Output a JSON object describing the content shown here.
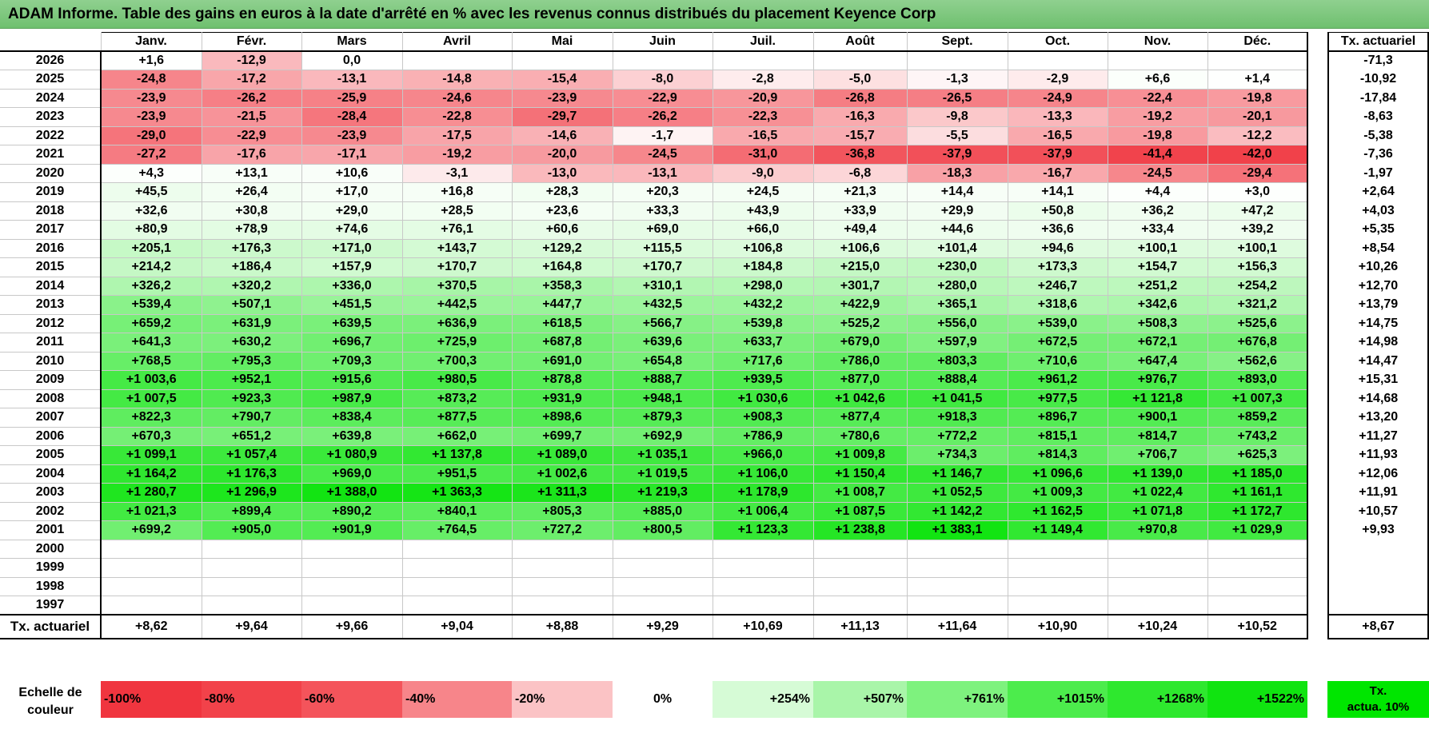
{
  "title": "ADAM Informe. Table des gains en euros à la date d'arrêté en % avec les revenus connus distribués du placement Keyence Corp",
  "months": [
    "Janv.",
    "Févr.",
    "Mars",
    "Avril",
    "Mai",
    "Juin",
    "Juil.",
    "Août",
    "Sept.",
    "Oct.",
    "Nov.",
    "Déc."
  ],
  "side_header": "Tx. actuariel",
  "rows": [
    {
      "year": "2026",
      "values": [
        "+1,6",
        "-12,9",
        "0,0",
        "",
        "",
        "",
        "",
        "",
        "",
        "",
        "",
        ""
      ],
      "tx": "-71,3"
    },
    {
      "year": "2025",
      "values": [
        "-24,8",
        "-17,2",
        "-13,1",
        "-14,8",
        "-15,4",
        "-8,0",
        "-2,8",
        "-5,0",
        "-1,3",
        "-2,9",
        "+6,6",
        "+1,4"
      ],
      "tx": "-10,92"
    },
    {
      "year": "2024",
      "values": [
        "-23,9",
        "-26,2",
        "-25,9",
        "-24,6",
        "-23,9",
        "-22,9",
        "-20,9",
        "-26,8",
        "-26,5",
        "-24,9",
        "-22,4",
        "-19,8"
      ],
      "tx": "-17,84"
    },
    {
      "year": "2023",
      "values": [
        "-23,9",
        "-21,5",
        "-28,4",
        "-22,8",
        "-29,7",
        "-26,2",
        "-22,3",
        "-16,3",
        "-9,8",
        "-13,3",
        "-19,2",
        "-20,1"
      ],
      "tx": "-8,63"
    },
    {
      "year": "2022",
      "values": [
        "-29,0",
        "-22,9",
        "-23,9",
        "-17,5",
        "-14,6",
        "-1,7",
        "-16,5",
        "-15,7",
        "-5,5",
        "-16,5",
        "-19,8",
        "-12,2"
      ],
      "tx": "-5,38"
    },
    {
      "year": "2021",
      "values": [
        "-27,2",
        "-17,6",
        "-17,1",
        "-19,2",
        "-20,0",
        "-24,5",
        "-31,0",
        "-36,8",
        "-37,9",
        "-37,9",
        "-41,4",
        "-42,0"
      ],
      "tx": "-7,36"
    },
    {
      "year": "2020",
      "values": [
        "+4,3",
        "+13,1",
        "+10,6",
        "-3,1",
        "-13,0",
        "-13,1",
        "-9,0",
        "-6,8",
        "-18,3",
        "-16,7",
        "-24,5",
        "-29,4"
      ],
      "tx": "-1,97"
    },
    {
      "year": "2019",
      "values": [
        "+45,5",
        "+26,4",
        "+17,0",
        "+16,8",
        "+28,3",
        "+20,3",
        "+24,5",
        "+21,3",
        "+14,4",
        "+14,1",
        "+4,4",
        "+3,0"
      ],
      "tx": "+2,64"
    },
    {
      "year": "2018",
      "values": [
        "+32,6",
        "+30,8",
        "+29,0",
        "+28,5",
        "+23,6",
        "+33,3",
        "+43,9",
        "+33,9",
        "+29,9",
        "+50,8",
        "+36,2",
        "+47,2"
      ],
      "tx": "+4,03"
    },
    {
      "year": "2017",
      "values": [
        "+80,9",
        "+78,9",
        "+74,6",
        "+76,1",
        "+60,6",
        "+69,0",
        "+66,0",
        "+49,4",
        "+44,6",
        "+36,6",
        "+33,4",
        "+39,2"
      ],
      "tx": "+5,35"
    },
    {
      "year": "2016",
      "values": [
        "+205,1",
        "+176,3",
        "+171,0",
        "+143,7",
        "+129,2",
        "+115,5",
        "+106,8",
        "+106,6",
        "+101,4",
        "+94,6",
        "+100,1",
        "+100,1"
      ],
      "tx": "+8,54"
    },
    {
      "year": "2015",
      "values": [
        "+214,2",
        "+186,4",
        "+157,9",
        "+170,7",
        "+164,8",
        "+170,7",
        "+184,8",
        "+215,0",
        "+230,0",
        "+173,3",
        "+154,7",
        "+156,3"
      ],
      "tx": "+10,26"
    },
    {
      "year": "2014",
      "values": [
        "+326,2",
        "+320,2",
        "+336,0",
        "+370,5",
        "+358,3",
        "+310,1",
        "+298,0",
        "+301,7",
        "+280,0",
        "+246,7",
        "+251,2",
        "+254,2"
      ],
      "tx": "+12,70"
    },
    {
      "year": "2013",
      "values": [
        "+539,4",
        "+507,1",
        "+451,5",
        "+442,5",
        "+447,7",
        "+432,5",
        "+432,2",
        "+422,9",
        "+365,1",
        "+318,6",
        "+342,6",
        "+321,2"
      ],
      "tx": "+13,79"
    },
    {
      "year": "2012",
      "values": [
        "+659,2",
        "+631,9",
        "+639,5",
        "+636,9",
        "+618,5",
        "+566,7",
        "+539,8",
        "+525,2",
        "+556,0",
        "+539,0",
        "+508,3",
        "+525,6"
      ],
      "tx": "+14,75"
    },
    {
      "year": "2011",
      "values": [
        "+641,3",
        "+630,2",
        "+696,7",
        "+725,9",
        "+687,8",
        "+639,6",
        "+633,7",
        "+679,0",
        "+597,9",
        "+672,5",
        "+672,1",
        "+676,8"
      ],
      "tx": "+14,98"
    },
    {
      "year": "2010",
      "values": [
        "+768,5",
        "+795,3",
        "+709,3",
        "+700,3",
        "+691,0",
        "+654,8",
        "+717,6",
        "+786,0",
        "+803,3",
        "+710,6",
        "+647,4",
        "+562,6"
      ],
      "tx": "+14,47"
    },
    {
      "year": "2009",
      "values": [
        "+1 003,6",
        "+952,1",
        "+915,6",
        "+980,5",
        "+878,8",
        "+888,7",
        "+939,5",
        "+877,0",
        "+888,4",
        "+961,2",
        "+976,7",
        "+893,0"
      ],
      "tx": "+15,31"
    },
    {
      "year": "2008",
      "values": [
        "+1 007,5",
        "+923,3",
        "+987,9",
        "+873,2",
        "+931,9",
        "+948,1",
        "+1 030,6",
        "+1 042,6",
        "+1 041,5",
        "+977,5",
        "+1 121,8",
        "+1 007,3"
      ],
      "tx": "+14,68"
    },
    {
      "year": "2007",
      "values": [
        "+822,3",
        "+790,7",
        "+838,4",
        "+877,5",
        "+898,6",
        "+879,3",
        "+908,3",
        "+877,4",
        "+918,3",
        "+896,7",
        "+900,1",
        "+859,2"
      ],
      "tx": "+13,20"
    },
    {
      "year": "2006",
      "values": [
        "+670,3",
        "+651,2",
        "+639,8",
        "+662,0",
        "+699,7",
        "+692,9",
        "+786,9",
        "+780,6",
        "+772,2",
        "+815,1",
        "+814,7",
        "+743,2"
      ],
      "tx": "+11,27"
    },
    {
      "year": "2005",
      "values": [
        "+1 099,1",
        "+1 057,4",
        "+1 080,9",
        "+1 137,8",
        "+1 089,0",
        "+1 035,1",
        "+966,0",
        "+1 009,8",
        "+734,3",
        "+814,3",
        "+706,7",
        "+625,3"
      ],
      "tx": "+11,93"
    },
    {
      "year": "2004",
      "values": [
        "+1 164,2",
        "+1 176,3",
        "+969,0",
        "+951,5",
        "+1 002,6",
        "+1 019,5",
        "+1 106,0",
        "+1 150,4",
        "+1 146,7",
        "+1 096,6",
        "+1 139,0",
        "+1 185,0"
      ],
      "tx": "+12,06"
    },
    {
      "year": "2003",
      "values": [
        "+1 280,7",
        "+1 296,9",
        "+1 388,0",
        "+1 363,3",
        "+1 311,3",
        "+1 219,3",
        "+1 178,9",
        "+1 008,7",
        "+1 052,5",
        "+1 009,3",
        "+1 022,4",
        "+1 161,1"
      ],
      "tx": "+11,91"
    },
    {
      "year": "2002",
      "values": [
        "+1 021,3",
        "+899,4",
        "+890,2",
        "+840,1",
        "+805,3",
        "+885,0",
        "+1 006,4",
        "+1 087,5",
        "+1 142,2",
        "+1 162,5",
        "+1 071,8",
        "+1 172,7"
      ],
      "tx": "+10,57"
    },
    {
      "year": "2001",
      "values": [
        "+699,2",
        "+905,0",
        "+901,9",
        "+764,5",
        "+727,2",
        "+800,5",
        "+1 123,3",
        "+1 238,8",
        "+1 383,1",
        "+1 149,4",
        "+970,8",
        "+1 029,9"
      ],
      "tx": "+9,93"
    },
    {
      "year": "2000",
      "values": [
        "",
        "",
        "",
        "",
        "",
        "",
        "",
        "",
        "",
        "",
        "",
        ""
      ],
      "tx": ""
    },
    {
      "year": "1999",
      "values": [
        "",
        "",
        "",
        "",
        "",
        "",
        "",
        "",
        "",
        "",
        "",
        ""
      ],
      "tx": ""
    },
    {
      "year": "1998",
      "values": [
        "",
        "",
        "",
        "",
        "",
        "",
        "",
        "",
        "",
        "",
        "",
        ""
      ],
      "tx": ""
    },
    {
      "year": "1997",
      "values": [
        "",
        "",
        "",
        "",
        "",
        "",
        "",
        "",
        "",
        "",
        "",
        ""
      ],
      "tx": ""
    }
  ],
  "totals": {
    "label": "Tx. actuariel",
    "values": [
      "+8,62",
      "+9,64",
      "+9,66",
      "+9,04",
      "+8,88",
      "+9,29",
      "+10,69",
      "+11,13",
      "+11,64",
      "+10,90",
      "+10,24",
      "+10,52"
    ],
    "tx": "+8,67"
  },
  "legend": {
    "label_line1": "Echelle de",
    "label_line2": "couleur",
    "items": [
      {
        "text": "-100%",
        "color": "#f0353f"
      },
      {
        "text": "-80%",
        "color": "#f2424a"
      },
      {
        "text": "-60%",
        "color": "#f4545b"
      },
      {
        "text": "-40%",
        "color": "#f7858a"
      },
      {
        "text": "-20%",
        "color": "#fbc3c5"
      },
      {
        "text": "0%",
        "color": "#ffffff"
      },
      {
        "text": "+254%",
        "color": "#d6fbd6"
      },
      {
        "text": "+507%",
        "color": "#a9f5a9"
      },
      {
        "text": "+761%",
        "color": "#7ef27e"
      },
      {
        "text": "+1015%",
        "color": "#4cec4c"
      },
      {
        "text": "+1268%",
        "color": "#2ee82e"
      },
      {
        "text": "+1522%",
        "color": "#10e410"
      }
    ],
    "tx_line1": "Tx.",
    "tx_line2": "actua. 10%"
  }
}
